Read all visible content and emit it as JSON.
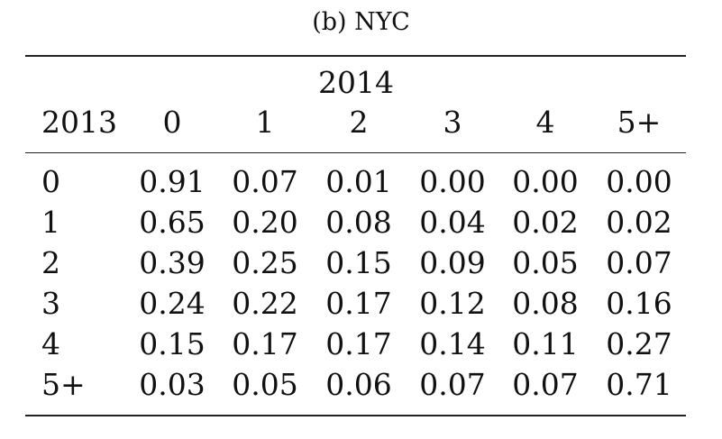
{
  "caption": "(b) NYC",
  "table": {
    "super_header": "2014",
    "row_header_label": "2013",
    "columns": [
      "0",
      "1",
      "2",
      "3",
      "4",
      "5+"
    ],
    "rows": [
      {
        "label": "0",
        "values": [
          "0.91",
          "0.07",
          "0.01",
          "0.00",
          "0.00",
          "0.00"
        ]
      },
      {
        "label": "1",
        "values": [
          "0.65",
          "0.20",
          "0.08",
          "0.04",
          "0.02",
          "0.02"
        ]
      },
      {
        "label": "2",
        "values": [
          "0.39",
          "0.25",
          "0.15",
          "0.09",
          "0.05",
          "0.07"
        ]
      },
      {
        "label": "3",
        "values": [
          "0.24",
          "0.22",
          "0.17",
          "0.12",
          "0.08",
          "0.16"
        ]
      },
      {
        "label": "4",
        "values": [
          "0.15",
          "0.17",
          "0.17",
          "0.14",
          "0.11",
          "0.27"
        ]
      },
      {
        "label": "5+",
        "values": [
          "0.03",
          "0.05",
          "0.06",
          "0.07",
          "0.07",
          "0.71"
        ]
      }
    ]
  }
}
